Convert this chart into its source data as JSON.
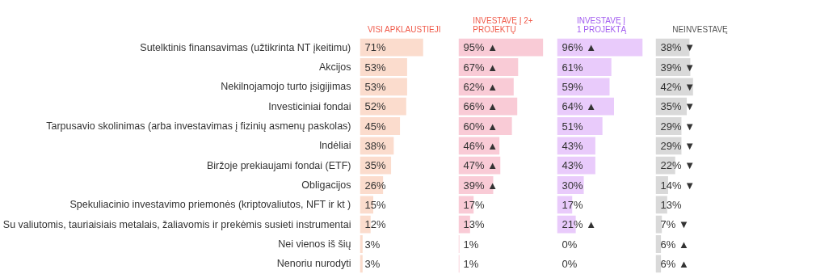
{
  "chart_data": [
    {
      "type": "bar",
      "orientation": "horizontal",
      "title": "VISI APKLAUSTIEJI",
      "categories": [
        "Sutelktinis finansavimas (užtikrinta NT įkeitimu)",
        "Akcijos",
        "Nekilnojamojo turto įsigijimas",
        "Investiciniai fondai",
        "Tarpusavio skolinimas (arba investavimas į fizinių asmenų paskolas)",
        "Indėliai",
        "Biržoje prekiaujami fondai (ETF)",
        "Obligacijos",
        "Spekuliacinio investavimo priemonės (kriptovaliutos, NFT ir kt )",
        "Su valiutomis, tauriaisiais metalais, žaliavomis ir prekėmis susieti instrumentai",
        "Nei vienos iš šių",
        "Nenoriu nurodyti"
      ],
      "values": [
        71,
        53,
        53,
        52,
        45,
        38,
        35,
        26,
        15,
        12,
        3,
        3
      ],
      "value_labels": [
        "71%",
        "53%",
        "53%",
        "52%",
        "45%",
        "38%",
        "35%",
        "26%",
        "15%",
        "12%",
        "3%",
        "3%"
      ],
      "color": "#fbdccd",
      "tick_labels": "y"
    },
    {
      "type": "bar",
      "orientation": "horizontal",
      "title": "INVESTAVĘ Į 2+\nPROJEKTŲ",
      "values": [
        95,
        67,
        62,
        66,
        60,
        46,
        47,
        39,
        17,
        13,
        1,
        1
      ],
      "value_labels": [
        "95% ▲",
        "67% ▲",
        "62% ▲",
        "66% ▲",
        "60% ▲",
        "46% ▲",
        "47% ▲",
        "39% ▲",
        "17%",
        "13%",
        "1%",
        "1%"
      ],
      "color": "#f9cbd6",
      "tick_labels": false
    },
    {
      "type": "bar",
      "orientation": "horizontal",
      "title": "INVESTAVĘ Į\n1 PROJEKTĄ",
      "values": [
        96,
        61,
        59,
        64,
        51,
        43,
        43,
        30,
        17,
        21,
        0,
        0
      ],
      "value_labels": [
        "96% ▲",
        "61%",
        "59%",
        "64% ▲",
        "51%",
        "43%",
        "43%",
        "30%",
        "17%",
        "21% ▲",
        "0%",
        "0%"
      ],
      "color": "#e9cbfb",
      "tick_labels": false
    },
    {
      "type": "bar",
      "orientation": "horizontal",
      "title": "NEINVESTAVĘ",
      "values": [
        38,
        39,
        42,
        35,
        29,
        29,
        22,
        14,
        13,
        7,
        6,
        6
      ],
      "value_labels": [
        "38% ▼",
        "39% ▼",
        "42% ▼",
        "35% ▼",
        "29% ▼",
        "29% ▼",
        "22% ▼",
        "14% ▼",
        "13%",
        "7% ▼",
        "6% ▲",
        "6% ▲"
      ],
      "color": "#d9d9d9",
      "tick_labels": false
    }
  ]
}
